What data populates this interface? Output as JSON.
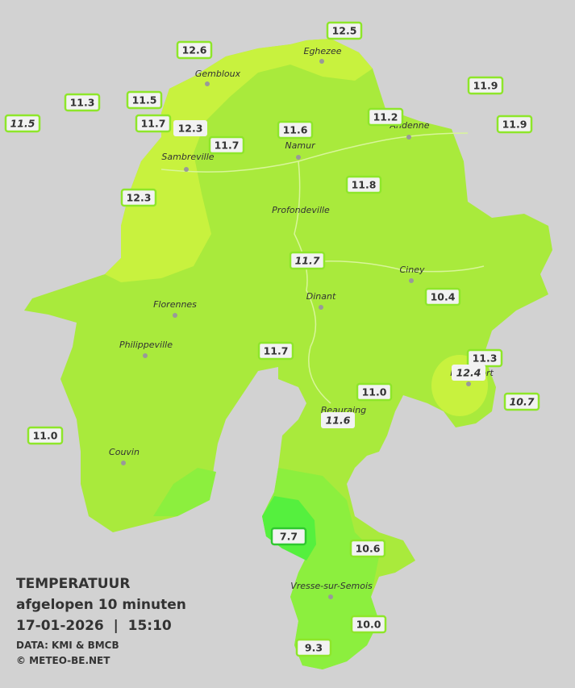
{
  "title": {
    "line1": "TEMPERATUUR",
    "line2": "afgelopen 10 minuten",
    "line3": "17-01-2026  |  15:10",
    "source": "DATA: KMI & BMCB",
    "copyright": "© METEO-BE.NET"
  },
  "cities": [
    "Eghezee",
    "Gembloux",
    "Andenne",
    "Namur",
    "Sambreville",
    "Profondeville",
    "Ciney",
    "Dinant",
    "Florennes",
    "Philippeville",
    "Rochefort",
    "Beauraing",
    "Couvin",
    "Vresse-sur-Semois"
  ],
  "stations": [
    "12.5",
    "12.6",
    "11.9",
    "11.3",
    "11.5",
    "11.5",
    "11.7",
    "12.3",
    "11.2",
    "11.6",
    "11.9",
    "11.7",
    "11.8",
    "12.3",
    "11.7",
    "10.4",
    "11.7",
    "11.3",
    "12.4",
    "11.0",
    "10.7",
    "11.6",
    "11.0",
    "7.7",
    "10.6",
    "10.0",
    "9.3"
  ]
}
